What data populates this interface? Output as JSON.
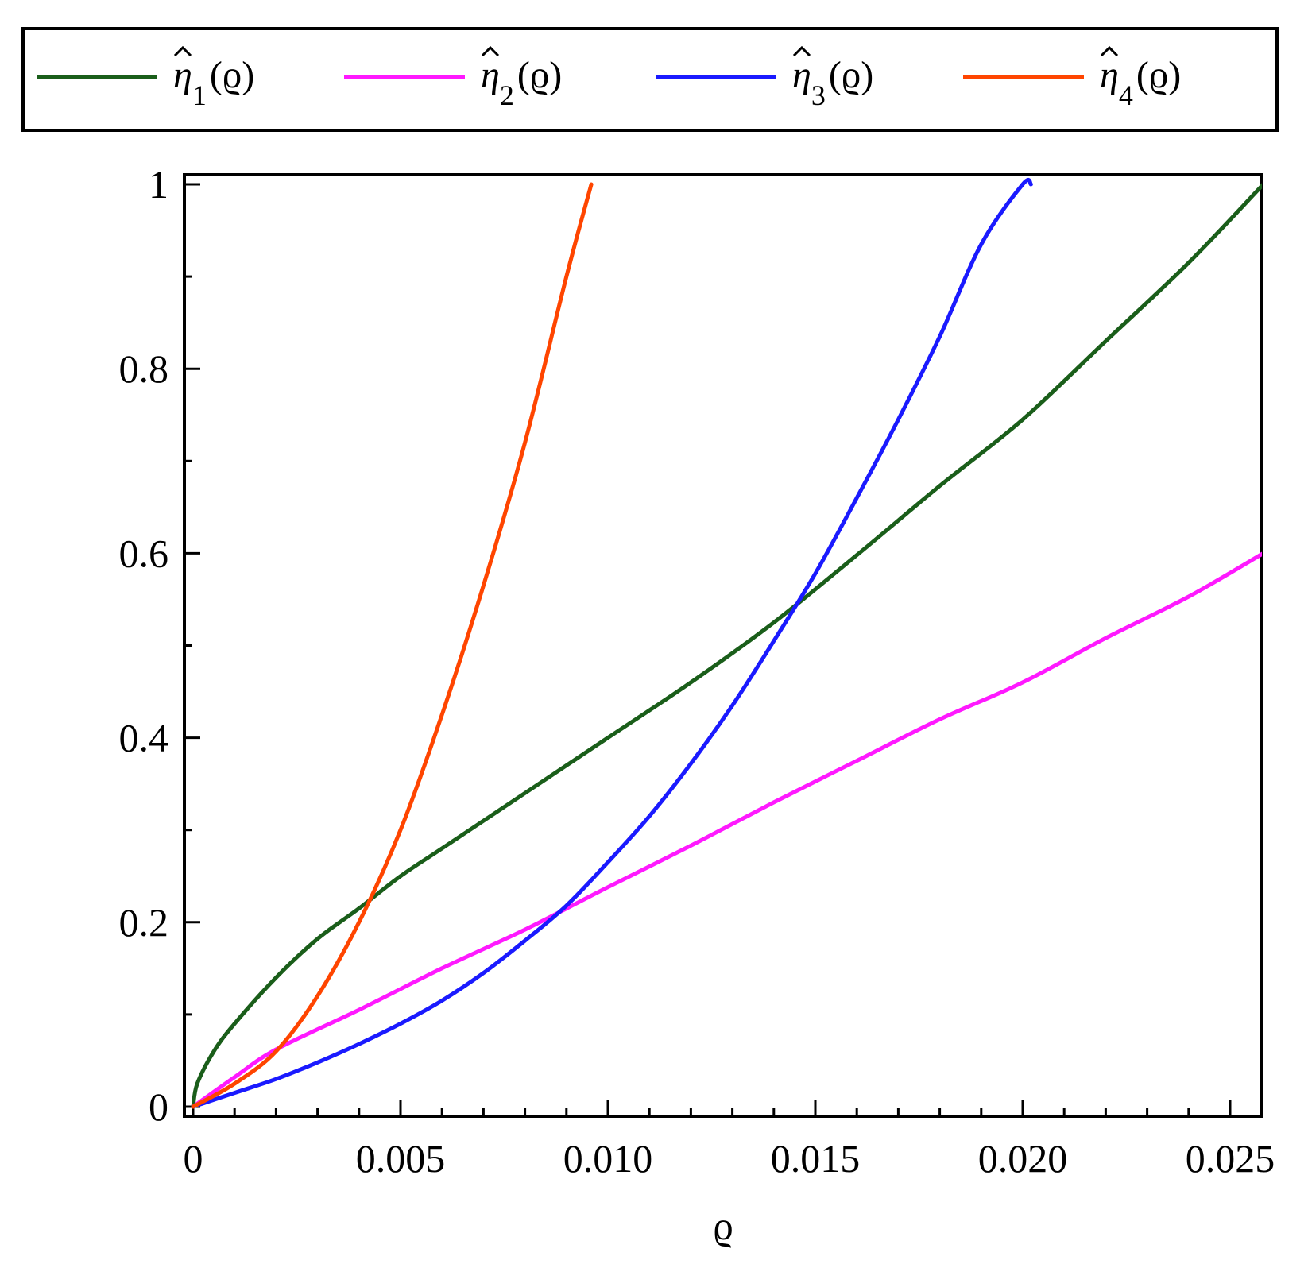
{
  "chart_data": {
    "type": "line",
    "xlabel": "ϱ",
    "ylabel": "",
    "xlim": [
      0,
      0.0258
    ],
    "ylim": [
      0,
      1
    ],
    "x_ticks": [
      {
        "value": 0,
        "label": "0"
      },
      {
        "value": 0.005,
        "label": "0.005"
      },
      {
        "value": 0.01,
        "label": "0.010"
      },
      {
        "value": 0.015,
        "label": "0.015"
      },
      {
        "value": 0.02,
        "label": "0.020"
      },
      {
        "value": 0.025,
        "label": "0.025"
      }
    ],
    "y_ticks": [
      {
        "value": 0,
        "label": "0"
      },
      {
        "value": 0.2,
        "label": "0.2"
      },
      {
        "value": 0.4,
        "label": "0.4"
      },
      {
        "value": 0.6,
        "label": "0.6"
      },
      {
        "value": 0.8,
        "label": "0.8"
      },
      {
        "value": 1,
        "label": "1"
      }
    ],
    "grid": false,
    "legend_position": "top",
    "series": [
      {
        "name": "η̂1(ϱ)",
        "symbol": "η",
        "subscript": "1",
        "arg": "(ϱ)",
        "color": "#1a5e1a",
        "x": [
          0,
          0.0001,
          0.0005,
          0.001,
          0.002,
          0.003,
          0.004,
          0.005,
          0.006,
          0.008,
          0.01,
          0.012,
          0.014,
          0.016,
          0.018,
          0.02,
          0.022,
          0.024,
          0.0258
        ],
        "y": [
          0,
          0.025,
          0.06,
          0.09,
          0.14,
          0.182,
          0.215,
          0.25,
          0.28,
          0.34,
          0.4,
          0.46,
          0.525,
          0.598,
          0.673,
          0.745,
          0.83,
          0.915,
          1.0
        ]
      },
      {
        "name": "η̂2(ϱ)",
        "symbol": "η",
        "subscript": "2",
        "arg": "(ϱ)",
        "color": "#ff19ff",
        "x": [
          0,
          0.001,
          0.002,
          0.004,
          0.006,
          0.008,
          0.01,
          0.012,
          0.014,
          0.016,
          0.018,
          0.02,
          0.022,
          0.024,
          0.0258
        ],
        "y": [
          0,
          0.032,
          0.062,
          0.105,
          0.15,
          0.192,
          0.238,
          0.283,
          0.33,
          0.375,
          0.42,
          0.46,
          0.508,
          0.553,
          0.6
        ]
      },
      {
        "name": "η̂3(ϱ)",
        "symbol": "η",
        "subscript": "3",
        "arg": "(ϱ)",
        "color": "#1a1aff",
        "x": [
          0,
          0.001,
          0.002,
          0.003,
          0.004,
          0.005,
          0.006,
          0.007,
          0.008,
          0.009,
          0.01,
          0.011,
          0.012,
          0.013,
          0.014,
          0.015,
          0.016,
          0.017,
          0.018,
          0.019,
          0.02,
          0.0202
        ],
        "y": [
          0,
          0.015,
          0.03,
          0.048,
          0.068,
          0.09,
          0.115,
          0.145,
          0.18,
          0.218,
          0.265,
          0.315,
          0.372,
          0.435,
          0.505,
          0.578,
          0.66,
          0.745,
          0.835,
          0.935,
          1.0,
          1.0
        ]
      },
      {
        "name": "η̂4(ϱ)",
        "symbol": "η",
        "subscript": "4",
        "arg": "(ϱ)",
        "color": "#ff4500",
        "x": [
          0,
          0.001,
          0.002,
          0.003,
          0.004,
          0.005,
          0.006,
          0.007,
          0.008,
          0.009,
          0.0096
        ],
        "y": [
          0,
          0.025,
          0.06,
          0.12,
          0.2,
          0.3,
          0.425,
          0.565,
          0.72,
          0.9,
          1.0
        ]
      }
    ]
  }
}
